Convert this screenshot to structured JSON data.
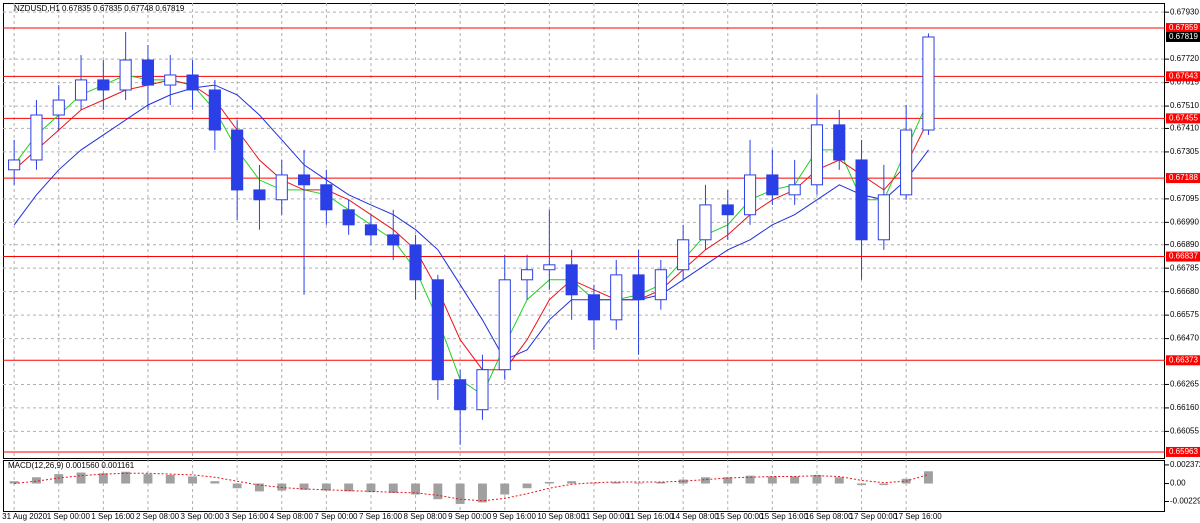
{
  "chart_data": [
    {
      "type": "candlestick",
      "title": "NZDUSD,H1  0.67835 0.67835 0.67748 0.67819",
      "categories": [
        "31 Aug 2020",
        null,
        "1 Sep 00:00",
        null,
        "1 Sep 16:00",
        null,
        "2 Sep 08:00",
        null,
        "3 Sep 00:00",
        null,
        "3 Sep 16:00",
        null,
        "4 Sep 08:00",
        null,
        "7 Sep 00:00",
        null,
        "7 Sep 16:00",
        null,
        "8 Sep 08:00",
        null,
        "9 Sep 00:00",
        null,
        "9 Sep 16:00",
        null,
        "10 Sep 08:00",
        null,
        "11 Sep 00:00",
        null,
        "11 Sep 16:00",
        null,
        "14 Sep 08:00",
        null,
        "15 Sep 00:00",
        null,
        "15 Sep 16:00",
        null,
        "16 Sep 08:00",
        null,
        "17 Sep 00:00",
        null,
        "17 Sep 16:00",
        null
      ],
      "open": [
        0.67225,
        0.67269,
        0.6747,
        0.67537,
        0.67627,
        0.67582,
        0.67716,
        0.67604,
        0.67649,
        0.67582,
        0.67403,
        0.67135,
        0.67091,
        0.67202,
        0.67158,
        0.67046,
        0.66979,
        0.66934,
        0.66889,
        0.66733,
        0.66286,
        0.66152,
        0.66331,
        0.66733,
        0.66778,
        0.668,
        0.66666,
        0.66554,
        0.66755,
        0.66644,
        0.66778,
        0.66912,
        0.67068,
        0.67024,
        0.67202,
        0.67113,
        0.67158,
        0.67426,
        0.67269,
        0.66912,
        0.67113,
        0.67403
      ],
      "high": [
        0.67359,
        0.67537,
        0.67604,
        0.67738,
        0.67716,
        0.67841,
        0.67783,
        0.67738,
        0.67716,
        0.67627,
        0.67448,
        0.67247,
        0.67269,
        0.67314,
        0.67225,
        0.67091,
        0.67024,
        0.67046,
        0.66934,
        0.66755,
        0.66331,
        0.66398,
        0.66845,
        0.66845,
        0.67046,
        0.66867,
        0.66711,
        0.66822,
        0.66867,
        0.66822,
        0.66979,
        0.67158,
        0.67135,
        0.67359,
        0.67314,
        0.67269,
        0.6756,
        0.67493,
        0.67359,
        0.67247,
        0.67515,
        0.67835
      ],
      "low": [
        0.67158,
        0.67225,
        0.67403,
        0.67493,
        0.67493,
        0.67537,
        0.67493,
        0.67515,
        0.67493,
        0.67314,
        0.67001,
        0.66957,
        0.67024,
        0.66666,
        0.66979,
        0.66934,
        0.66889,
        0.66822,
        0.66644,
        0.66196,
        0.65995,
        0.66107,
        0.66286,
        0.66644,
        0.66688,
        0.66554,
        0.6642,
        0.66509,
        0.66398,
        0.66599,
        0.66733,
        0.66867,
        0.66912,
        0.66979,
        0.67068,
        0.67068,
        0.67113,
        0.67225,
        0.66733,
        0.66867,
        0.67091,
        0.67381
      ],
      "close": [
        0.67269,
        0.6747,
        0.67537,
        0.67627,
        0.67582,
        0.67716,
        0.67604,
        0.67649,
        0.67582,
        0.67403,
        0.67135,
        0.67091,
        0.67202,
        0.67158,
        0.67046,
        0.66979,
        0.66934,
        0.66889,
        0.66733,
        0.66286,
        0.66152,
        0.66331,
        0.66733,
        0.66778,
        0.668,
        0.66666,
        0.66554,
        0.66755,
        0.66644,
        0.66778,
        0.66912,
        0.67068,
        0.67024,
        0.67202,
        0.67113,
        0.67158,
        0.67426,
        0.67269,
        0.66912,
        0.67113,
        0.67403,
        0.67819
      ],
      "bull_fill": "#ffffff",
      "bear_fill": "#2b3fe6",
      "color": "#2b3fe6",
      "series": [
        {
          "color": "#1fd11f",
          "values": [
            0.67247,
            0.67381,
            0.6747,
            0.6756,
            0.67604,
            0.67649,
            0.67627,
            0.67627,
            0.67604,
            0.67493,
            0.67314,
            0.6718,
            0.67135,
            0.67135,
            0.67113,
            0.67046,
            0.66979,
            0.66912,
            0.66778,
            0.66554,
            0.66286,
            0.66218,
            0.66442,
            0.66644,
            0.66733,
            0.66733,
            0.66644,
            0.66644,
            0.66666,
            0.66711,
            0.66822,
            0.66934,
            0.66979,
            0.67091,
            0.67135,
            0.67158,
            0.67314,
            0.67314,
            0.67091,
            0.67091,
            0.67314,
            0.67537
          ]
        },
        {
          "color": "#e8151b",
          "values": [
            0.67225,
            0.67314,
            0.67403,
            0.67493,
            0.67537,
            0.67582,
            0.67604,
            0.67627,
            0.67604,
            0.67537,
            0.67403,
            0.67269,
            0.6718,
            0.67135,
            0.67135,
            0.67091,
            0.67024,
            0.66957,
            0.66867,
            0.66688,
            0.66465,
            0.66331,
            0.66331,
            0.66465,
            0.66644,
            0.66733,
            0.66688,
            0.66644,
            0.66644,
            0.66688,
            0.66778,
            0.66867,
            0.66934,
            0.67024,
            0.67091,
            0.67135,
            0.67225,
            0.67269,
            0.67202,
            0.67135,
            0.67247,
            0.67448
          ]
        },
        {
          "color": "#2130d8",
          "values": [
            0.66979,
            0.67113,
            0.67225,
            0.67314,
            0.67381,
            0.67448,
            0.67515,
            0.6756,
            0.67591,
            0.67604,
            0.6756,
            0.6747,
            0.67359,
            0.67247,
            0.6718,
            0.67113,
            0.67068,
            0.67024,
            0.66957,
            0.66867,
            0.66711,
            0.66554,
            0.66375,
            0.6642,
            0.66554,
            0.66644,
            0.66644,
            0.66644,
            0.66644,
            0.66666,
            0.66733,
            0.668,
            0.66867,
            0.66912,
            0.66979,
            0.67024,
            0.67091,
            0.67158,
            0.67113,
            0.67091,
            0.6718,
            0.67314
          ]
        }
      ],
      "levels": [
        0.67859,
        0.67643,
        0.67455,
        0.67188,
        0.66837,
        0.66373,
        0.65963
      ],
      "level_color": "#ff0000",
      "current_price": 0.67819,
      "ylim": [
        0.65936,
        0.67971
      ],
      "yticks": [
        {
          "value": 0.6793,
          "label": "0.67930"
        },
        {
          "value": 0.6772,
          "label": "0.67720"
        },
        0.67615,
        {
          "value": 0.6751,
          "label": "0.67510"
        },
        {
          "value": 0.6741,
          "label": "0.67410"
        },
        0.67305,
        0.67095,
        {
          "value": 0.6699,
          "label": "0.66990"
        },
        {
          "value": 0.6689,
          "label": "0.66890"
        },
        0.66785,
        {
          "value": 0.6668,
          "label": "0.66680"
        },
        0.66575,
        {
          "value": 0.6647,
          "label": "0.66470"
        },
        0.66265,
        {
          "value": 0.6616,
          "label": "0.66160"
        },
        0.66055
      ],
      "grid": true
    },
    {
      "type": "macd",
      "title": "MACD(12,26,9) 0.001560 0.001161",
      "histogram": {
        "color": "#a0a0a0",
        "values": [
          0.0003,
          0.0008,
          0.0012,
          0.0014,
          0.0013,
          0.0015,
          0.0012,
          0.0011,
          0.0009,
          0.0003,
          -0.0006,
          -0.001,
          -0.0009,
          -0.0008,
          -0.0009,
          -0.001,
          -0.0011,
          -0.0012,
          -0.0014,
          -0.002,
          -0.0026,
          -0.0024,
          -0.0014,
          -0.0006,
          0.0002,
          0.0003,
          0.0001,
          0.0002,
          0.0001,
          0.0002,
          0.0005,
          0.0008,
          0.0008,
          0.001,
          0.0009,
          0.0009,
          0.0011,
          0.0008,
          -0.0002,
          -0.0002,
          0.0006,
          0.00156
        ]
      },
      "signal": {
        "color": "#e8151b",
        "values": [
          0,
          0.0003,
          0.0007,
          0.001,
          0.0012,
          0.0013,
          0.0013,
          0.0012,
          0.0011,
          0.0008,
          0.0003,
          -0.0002,
          -0.0005,
          -0.0007,
          -0.0008,
          -0.0009,
          -0.001,
          -0.0011,
          -0.0012,
          -0.0015,
          -0.002,
          -0.0022,
          -0.0019,
          -0.0013,
          -0.0006,
          -0.0001,
          0.0001,
          0.0002,
          0.0002,
          0.0002,
          0.0003,
          0.0005,
          0.0007,
          0.0008,
          0.0009,
          0.0009,
          0.001,
          0.0009,
          0.0004,
          0.0001,
          0.0003,
          0.001161
        ]
      },
      "ylim": [
        -0.0035,
        0.00287
      ],
      "yticks": [
        0.002372,
        {
          "value": 0,
          "label": "0.00"
        },
        -0.00229
      ]
    }
  ]
}
